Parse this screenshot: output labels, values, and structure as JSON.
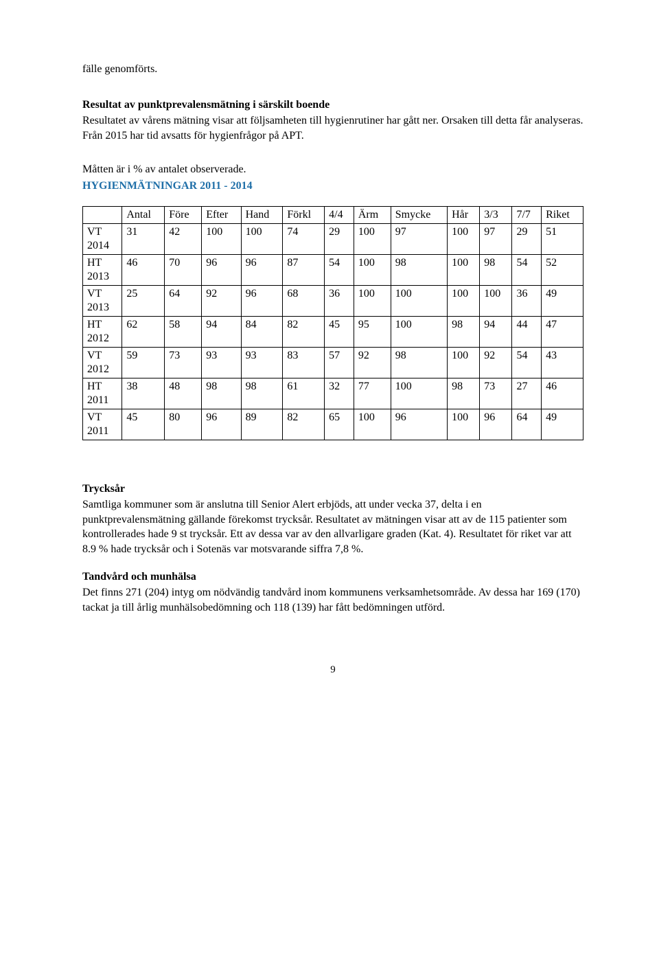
{
  "intro1": "fälle genomförts.",
  "section1_title": "Resultat av punktprevalensmätning i särskilt boende",
  "section1_body": "Resultatet av vårens mätning visar att följsamheten till hygienrutiner har gått ner. Orsaken till detta får analyseras. Från 2015 har tid avsatts för hygienfrågor på APT.",
  "matt_line": "Måtten är i % av antalet observerade.",
  "table_title": "HYGIENMÄTNINGAR 2011 - 2014",
  "columns": [
    "",
    "Antal",
    "Före",
    "Efter",
    "Hand",
    "Förkl",
    "4/4",
    "Ärm",
    "Smycke",
    "Hår",
    "3/3",
    "7/7",
    "Riket"
  ],
  "rows": [
    {
      "label": "VT 2014",
      "cells": [
        "31",
        "42",
        "100",
        "100",
        "74",
        "29",
        "100",
        "97",
        "100",
        "97",
        "29",
        "51"
      ]
    },
    {
      "label": "HT 2013",
      "cells": [
        "46",
        "70",
        "96",
        "96",
        "87",
        "54",
        "100",
        "98",
        "100",
        "98",
        "54",
        "52"
      ]
    },
    {
      "label": "VT 2013",
      "cells": [
        "25",
        "64",
        "92",
        "96",
        "68",
        "36",
        "100",
        "100",
        "100",
        "100",
        "36",
        "49"
      ]
    },
    {
      "label": "HT 2012",
      "cells": [
        "62",
        "58",
        "94",
        "84",
        "82",
        "45",
        "95",
        "100",
        "98",
        "94",
        "44",
        "47"
      ]
    },
    {
      "label": "VT 2012",
      "cells": [
        "59",
        "73",
        "93",
        "93",
        "83",
        "57",
        "92",
        "98",
        "100",
        "92",
        "54",
        "43"
      ]
    },
    {
      "label": "HT 2011",
      "cells": [
        "38",
        "48",
        "98",
        "98",
        "61",
        "32",
        "77",
        "100",
        "98",
        "73",
        "27",
        "46"
      ]
    },
    {
      "label": "VT 2011",
      "cells": [
        "45",
        "80",
        "96",
        "89",
        "82",
        "65",
        "100",
        "96",
        "100",
        "96",
        "64",
        "49"
      ]
    }
  ],
  "section2_title": "Trycksår",
  "section2_body": "Samtliga kommuner som är anslutna till Senior Alert erbjöds, att under vecka 37, delta i en punktprevalensmätning gällande förekomst trycksår. Resultatet av mätningen visar att av de 115 patienter som kontrollerades hade 9 st trycksår. Ett av dessa var av den allvarligare graden (Kat. 4). Resultatet för riket var att 8.9 % hade trycksår och i Sotenäs var motsvarande siffra 7,8 %.",
  "section3_title": "Tandvård och munhälsa",
  "section3_body": "Det finns 271 (204) intyg om nödvändig tandvård inom kommunens verksamhetsområde. Av dessa har 169 (170) tackat ja till årlig munhälsobedömning och 118 (139) har fått bedömningen utförd.",
  "page_number": "9"
}
